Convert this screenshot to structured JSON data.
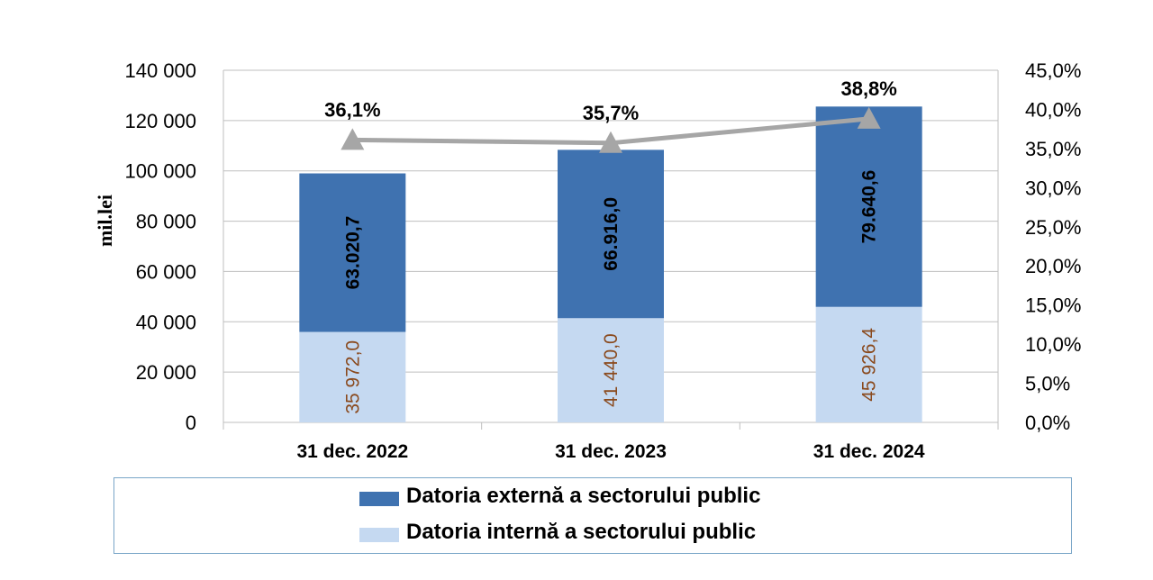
{
  "chart_data": {
    "type": "bar",
    "stacked": true,
    "categories": [
      "31 dec. 2022",
      "31 dec. 2023",
      "31 dec. 2024"
    ],
    "ylabel": "mil.lei",
    "ylim": [
      0,
      140000
    ],
    "y_ticks": [
      "0",
      "20 000",
      "40 000",
      "60 000",
      "80 000",
      "100 000",
      "120 000",
      "140 000"
    ],
    "y2lim": [
      0,
      45
    ],
    "y2_ticks": [
      "0,0%",
      "5,0%",
      "10,0%",
      "15,0%",
      "20,0%",
      "25,0%",
      "30,0%",
      "35,0%",
      "40,0%",
      "45,0%"
    ],
    "series": [
      {
        "name": "Datoria internă a sectorului public",
        "color": "#c5d9f1",
        "values": [
          35972.0,
          41440.0,
          45926.4
        ],
        "labels": [
          "35 972,0",
          "41 440,0",
          "45 926,4"
        ]
      },
      {
        "name": "Datoria externă a sectorului public",
        "color": "#3f72b0",
        "values": [
          63020.7,
          66916.0,
          79640.6
        ],
        "labels": [
          "63.020,7",
          "66.916,0",
          "79.640,6"
        ]
      }
    ],
    "line_series": {
      "axis": "right",
      "color": "#a6a6a6",
      "values": [
        36.1,
        35.7,
        38.8
      ],
      "labels": [
        "36,1%",
        "35,7%",
        "38,8%"
      ]
    },
    "grid": true,
    "legend_position": "bottom"
  },
  "legend": {
    "items": [
      {
        "label": "Datoria externă a sectorului public",
        "color": "#3f72b0"
      },
      {
        "label": "Datoria internă a sectorului public",
        "color": "#c5d9f1"
      }
    ]
  }
}
